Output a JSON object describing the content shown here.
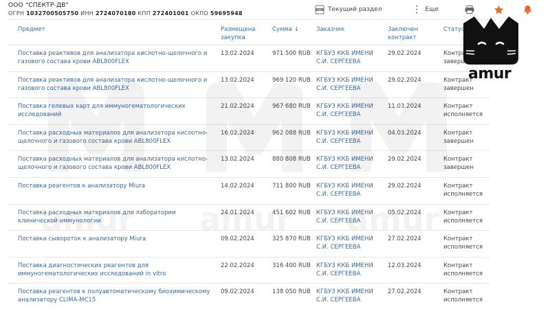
{
  "company": {
    "name": "ООО \"СПЕКТР-ДВ\"",
    "ogrn_label": "ОГРН",
    "ogrn": "1032700505750",
    "inn_label": "ИНН",
    "inn": "2724070180",
    "kpp_label": "КПП",
    "kpp": "272401001",
    "okpo_label": "ОКПО",
    "okpo": "59695948"
  },
  "toolbar": {
    "current_section_label": "Текущий раздел",
    "more_label": "Еще",
    "accent_color": "#e8692a"
  },
  "logo": {
    "text": "amur"
  },
  "watermark": {
    "text": "amur"
  },
  "table": {
    "headers": {
      "subject": "Предмет",
      "placed": "Размещена закупка",
      "sum": "Сумма ↓",
      "customer": "Заказчик",
      "concluded": "Заключен контракт",
      "status": "Статус"
    },
    "rows": [
      {
        "subject": "Поставка реактивов для анализатора кислотно-щелочного и газового состава крови ABL800FLEX",
        "placed": "13.02.2024",
        "sum": "971 500 RUB",
        "customer": "КГБУЗ ККБ ИМЕНИ С.И. СЕРГЕЕВА",
        "concluded": "29.02.2024",
        "status": "Контракт завершен"
      },
      {
        "subject": "Поставка реактивов для анализатора кислотно-щелочного и газового состава крови ABL800FLEX",
        "placed": "13.02.2024",
        "sum": "969 120 RUB",
        "customer": "КГБУЗ ККБ ИМЕНИ С.И. СЕРГЕЕВА",
        "concluded": "29.02.2024",
        "status": "Контракт завершен"
      },
      {
        "subject": "Поставка гелевых карт для иммуногематологических исследований",
        "placed": "21.02.2024",
        "sum": "967 680 RUB",
        "customer": "КГБУЗ ККБ ИМЕНИ С.И. СЕРГЕЕВА",
        "concluded": "11.03.2024",
        "status": "Контракт исполняется"
      },
      {
        "subject": "Поставка расходных материалов для анализатора кислотно-щелочного и газового состава крови ABL800FLEX",
        "placed": "16.02.2024",
        "sum": "962 088 RUB",
        "customer": "КГБУЗ ККБ ИМЕНИ С.И. СЕРГЕЕВА",
        "concluded": "04.03.2024",
        "status": "Контракт завершен"
      },
      {
        "subject": "Поставка расходных материалов для анализатора кислотно-щелочного и газового состава крови ABL800FLEX",
        "placed": "13.02.2024",
        "sum": "880 808 RUB",
        "customer": "КГБУЗ ККБ ИМЕНИ С.И. СЕРГЕЕВА",
        "concluded": "29.02.2024",
        "status": "Контракт завершен"
      },
      {
        "subject": "Поставка реагентов к анализатору Miura",
        "placed": "14.02.2024",
        "sum": "711 800 RUB",
        "customer": "КГБУЗ ККБ ИМЕНИ С.И. СЕРГЕЕВА",
        "concluded": "29.02.2024",
        "status": "Контракт исполняется"
      },
      {
        "subject": "Поставка расходных материалов для лаборатории клинической иммунологии",
        "placed": "24.01.2024",
        "sum": "451 602 RUB",
        "customer": "КГБУЗ ККБ ИМЕНИ С.И. СЕРГЕЕВА",
        "concluded": "05.02.2024",
        "status": "Контракт исполняется"
      },
      {
        "subject": "Поставка сывороток к анализатору Miura",
        "placed": "09.02.2024",
        "sum": "325 870 RUB",
        "customer": "КГБУЗ ККБ ИМЕНИ С.И. СЕРГЕЕВА",
        "concluded": "27.02.2024",
        "status": "Контракт исполняется"
      },
      {
        "subject": "Поставка диагностических реагентов для иммуногематологических исследований in vitro",
        "placed": "22.02.2024",
        "sum": "316 400 RUB",
        "customer": "КГБУЗ ККБ ИМЕНИ С.И. СЕРГЕЕВА",
        "concluded": "12.03.2024",
        "status": "Контракт исполняется"
      },
      {
        "subject": "Поставка реагентов к полуавтоматическому биохимическому анализатору CLIMA-MC15",
        "placed": "09.02.2024",
        "sum": "138 050 RUB",
        "customer": "КГБУЗ ККБ ИМЕНИ С.И. СЕРГЕЕВА",
        "concluded": "27.02.2024",
        "status": "Контракт исполняется"
      }
    ]
  }
}
